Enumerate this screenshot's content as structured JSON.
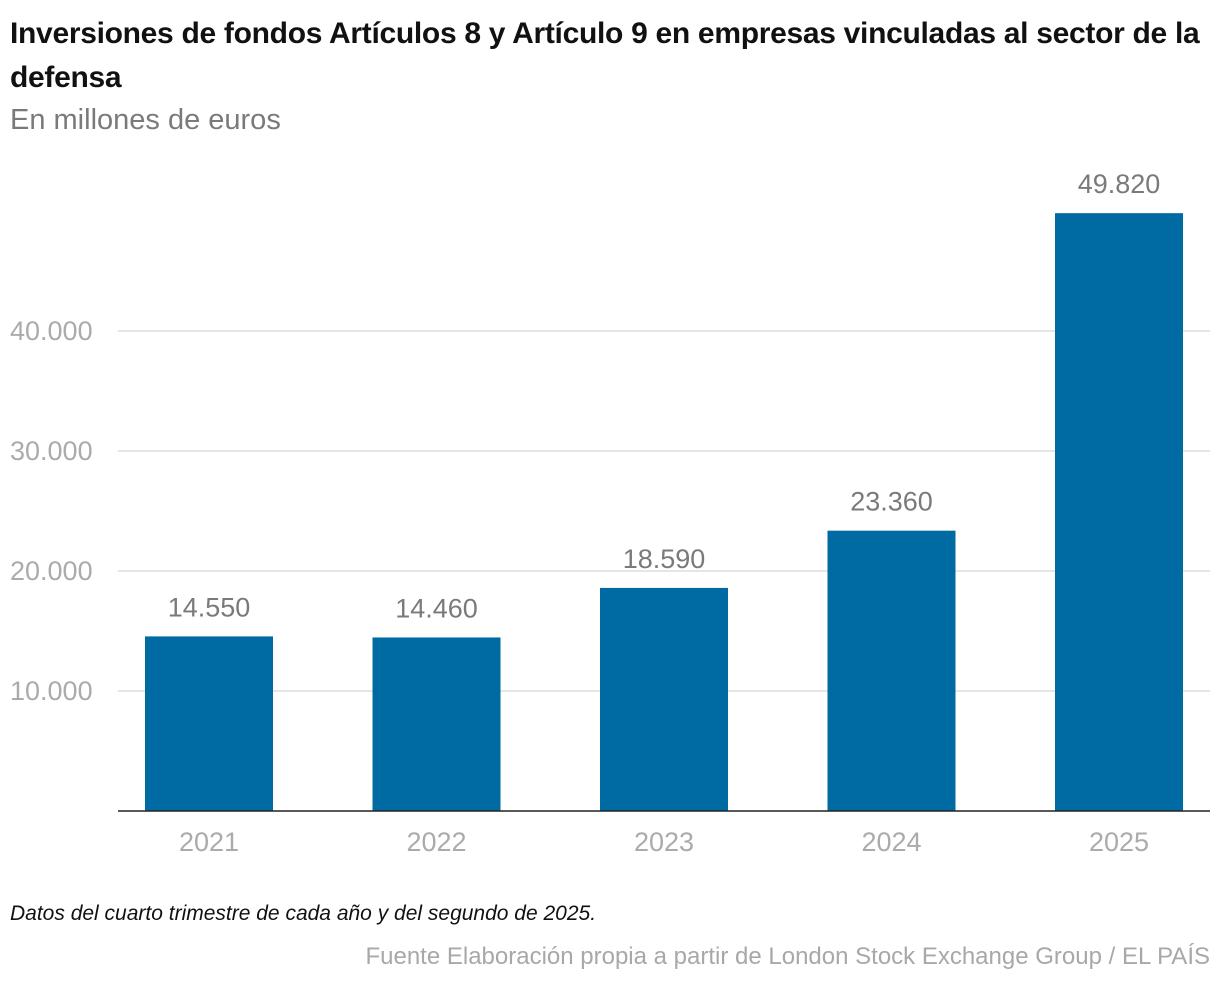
{
  "title": "Inversiones de fondos Artículos 8 y Artículo 9 en empresas vinculadas al sector de la defensa",
  "subtitle": "En millones de euros",
  "note": "Datos del cuarto trimestre de cada año y del segundo de 2025.",
  "source": "Fuente Elaboración propia a partir de London Stock Exchange Group / EL PAÍS",
  "chart_data": {
    "type": "bar",
    "title": "Inversiones de fondos Artículos 8 y Artículo 9 en empresas vinculadas al sector de la defensa",
    "subtitle": "En millones de euros",
    "categories": [
      "2021",
      "2022",
      "2023",
      "2024",
      "2025"
    ],
    "values": [
      14550,
      14460,
      18590,
      23360,
      49820
    ],
    "data_labels": [
      "14.550",
      "14.460",
      "18.590",
      "23.360",
      "49.820"
    ],
    "yticks": [
      10000,
      20000,
      30000,
      40000
    ],
    "ytick_labels": [
      "10.000",
      "20.000",
      "30.000",
      "40.000"
    ],
    "ylim": [
      0,
      50000
    ],
    "grid": true,
    "bar_color": "#006ba2",
    "xlabel": "",
    "ylabel": ""
  }
}
